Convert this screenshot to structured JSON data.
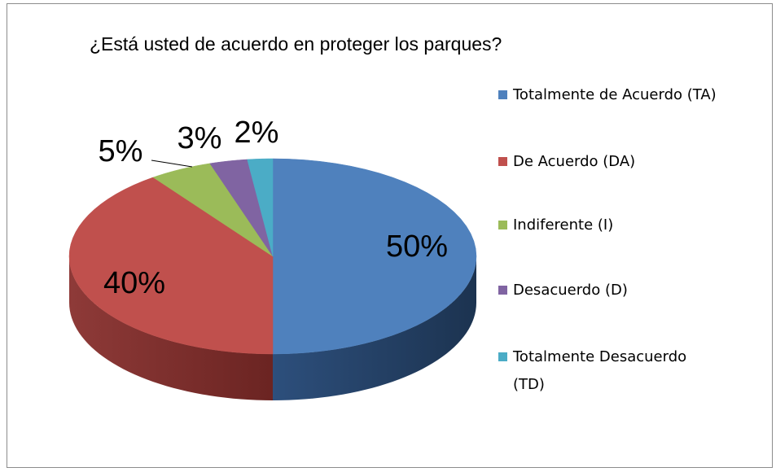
{
  "chart_data": {
    "type": "pie",
    "title": "¿Está usted de acuerdo en proteger los parques?",
    "categories": [
      "Totalmente de Acuerdo (TA)",
      "De Acuerdo (DA)",
      "Indiferente (I)",
      "Desacuerdo (D)",
      "Totalmente Desacuerdo (TD)"
    ],
    "values": [
      50,
      40,
      5,
      3,
      2
    ],
    "value_labels": [
      "50%",
      "40%",
      "5%",
      "3%",
      "2%"
    ],
    "colors": [
      "#4f81bd",
      "#c0504d",
      "#9bbb59",
      "#8064a2",
      "#4bacc6"
    ],
    "legend": "right"
  }
}
